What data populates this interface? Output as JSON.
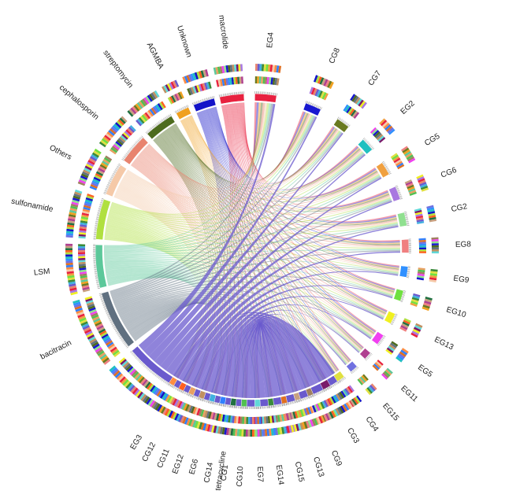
{
  "chart_data": {
    "type": "chord",
    "groups": [
      {
        "name": "macrolide",
        "color": "#e8223f",
        "kind": "antibiotic"
      },
      {
        "name": "Unknown",
        "color": "#1414c8",
        "kind": "antibiotic"
      },
      {
        "name": "AGMBA",
        "color": "#f0a020",
        "kind": "antibiotic"
      },
      {
        "name": "streptomycin",
        "color": "#4d6b1e",
        "kind": "antibiotic"
      },
      {
        "name": "cephalosporin",
        "color": "#e8836e",
        "kind": "antibiotic"
      },
      {
        "name": "Others",
        "color": "#f5c9a8",
        "kind": "antibiotic"
      },
      {
        "name": "sulfonamide",
        "color": "#b0e040",
        "kind": "antibiotic"
      },
      {
        "name": "LSM",
        "color": "#5cc89a",
        "kind": "antibiotic"
      },
      {
        "name": "bacitracin",
        "color": "#607080",
        "kind": "antibiotic"
      },
      {
        "name": "tetracycline",
        "color": "#6a5acd",
        "kind": "antibiotic"
      },
      {
        "name": "EG3",
        "color": "#ff8c40",
        "kind": "sample"
      },
      {
        "name": "CG12",
        "color": "#ff6020",
        "kind": "sample"
      },
      {
        "name": "CG11",
        "color": "#e8a060",
        "kind": "sample"
      },
      {
        "name": "EG12",
        "color": "#c09060",
        "kind": "sample"
      },
      {
        "name": "EG6",
        "color": "#40b0e0",
        "kind": "sample"
      },
      {
        "name": "CG14",
        "color": "#3080ff",
        "kind": "sample"
      },
      {
        "name": "CG1",
        "color": "#207040",
        "kind": "sample"
      },
      {
        "name": "CG10",
        "color": "#50c050",
        "kind": "sample"
      },
      {
        "name": "EG7",
        "color": "#60d8d8",
        "kind": "sample"
      },
      {
        "name": "EG14",
        "color": "#3a8a3a",
        "kind": "sample"
      },
      {
        "name": "CG15",
        "color": "#e07020",
        "kind": "sample"
      },
      {
        "name": "CG13",
        "color": "#c8a080",
        "kind": "sample"
      },
      {
        "name": "CG9",
        "color": "#a08060",
        "kind": "sample"
      },
      {
        "name": "CG3",
        "color": "#7a1a6a",
        "kind": "sample"
      },
      {
        "name": "CG4",
        "color": "#e0e040",
        "kind": "sample"
      },
      {
        "name": "EG15",
        "color": "#7070e0",
        "kind": "sample"
      },
      {
        "name": "EG11",
        "color": "#b04090",
        "kind": "sample"
      },
      {
        "name": "EG5",
        "color": "#f040f0",
        "kind": "sample"
      },
      {
        "name": "EG13",
        "color": "#f0f020",
        "kind": "sample"
      },
      {
        "name": "EG10",
        "color": "#70e040",
        "kind": "sample"
      },
      {
        "name": "EG9",
        "color": "#3090ff",
        "kind": "sample"
      },
      {
        "name": "EG8",
        "color": "#f08080",
        "kind": "sample"
      },
      {
        "name": "CG2",
        "color": "#90e090",
        "kind": "sample"
      },
      {
        "name": "CG6",
        "color": "#a878e0",
        "kind": "sample"
      },
      {
        "name": "CG5",
        "color": "#f0a040",
        "kind": "sample"
      },
      {
        "name": "EG2",
        "color": "#20c0c0",
        "kind": "sample"
      },
      {
        "name": "CG7",
        "color": "#6a7a20",
        "kind": "sample"
      },
      {
        "name": "CG8",
        "color": "#1818d0",
        "kind": "sample"
      },
      {
        "name": "EG4",
        "color": "#e82040",
        "kind": "sample"
      }
    ]
  }
}
